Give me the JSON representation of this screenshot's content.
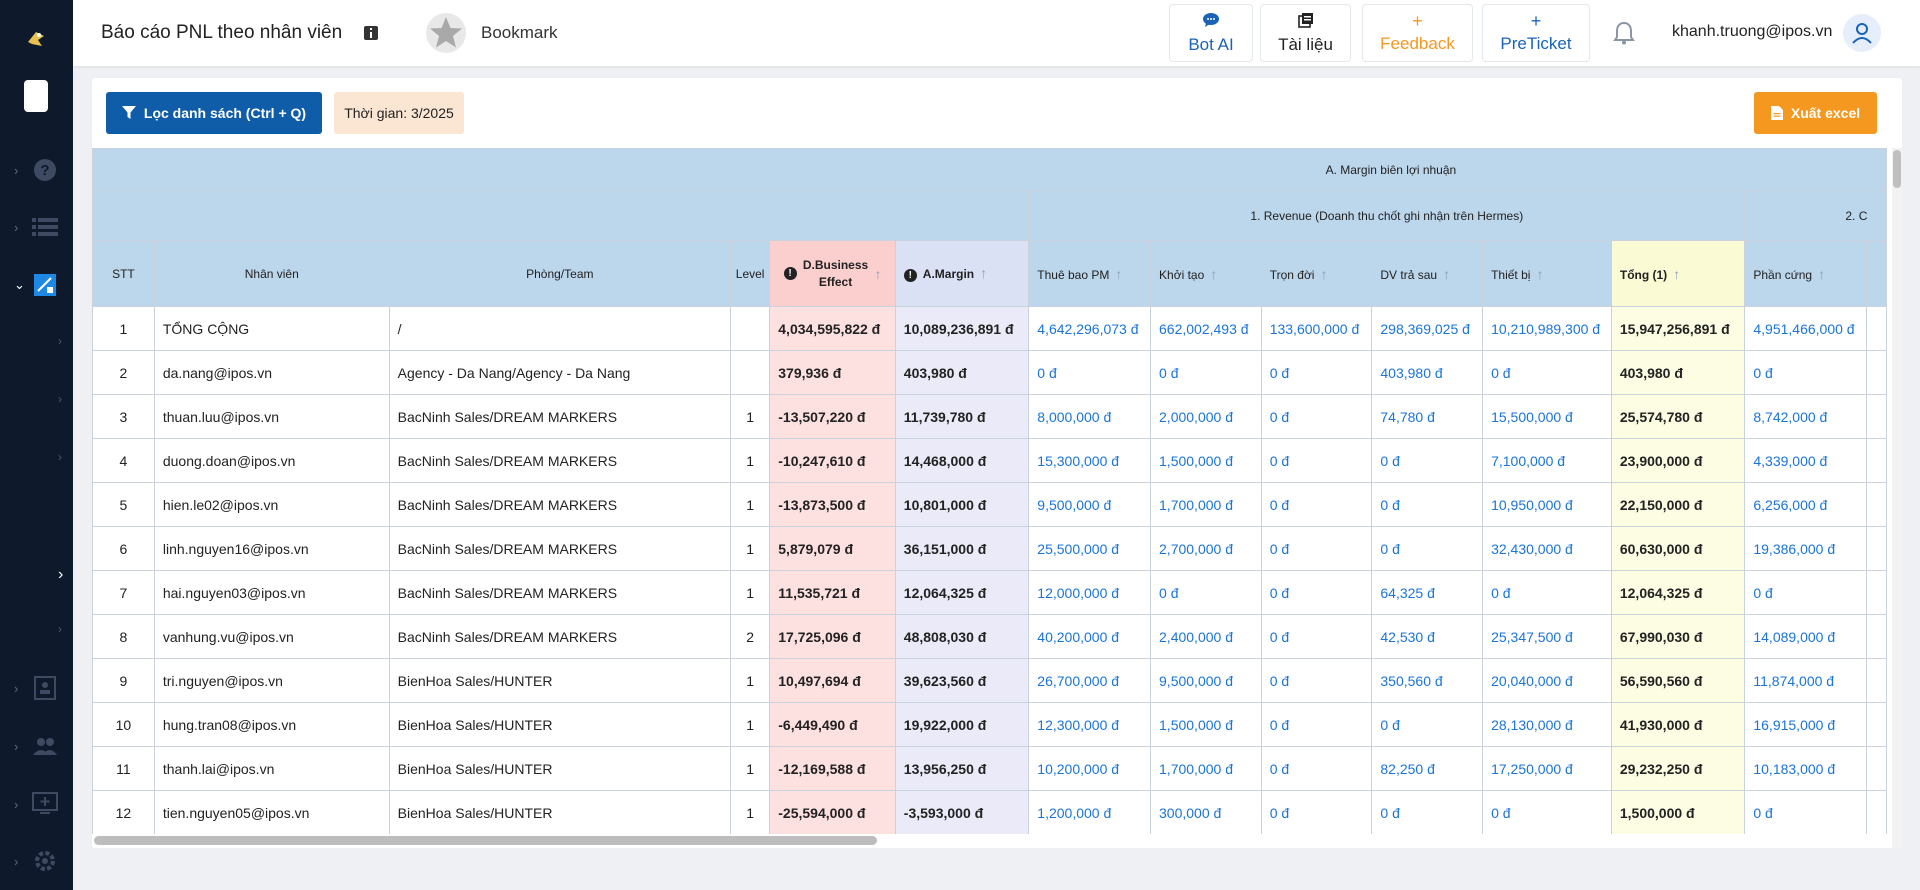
{
  "header": {
    "title": "Báo cáo PNL theo nhân viên",
    "bookmark_label": "Bookmark",
    "buttons": [
      {
        "label": "Bot AI",
        "icon": "chat-icon",
        "color": "#1a63b7"
      },
      {
        "label": "Tài liệu",
        "icon": "document-icon",
        "color": "#222222"
      },
      {
        "label": "Feedback",
        "icon": "plus-icon",
        "color": "#f5981f"
      },
      {
        "label": "PreTicket",
        "icon": "plus-icon",
        "color": "#1a63b7"
      }
    ],
    "user_email": "khanh.truong@ipos.vn"
  },
  "toolbar": {
    "filter_label": "Lọc danh sách (Ctrl + Q)",
    "time_label": "Thời gian: 3/2025",
    "export_label": "Xuất excel"
  },
  "table": {
    "group_header_a": "A. Margin biên lợi nhuận",
    "group_header_revenue": "1. Revenue (Doanh thu chốt ghi nhận trên Hermes)",
    "group_header_c": "2. C",
    "columns": {
      "stt": "STT",
      "nhan_vien": "Nhân viên",
      "phong_team": "Phòng/Team",
      "level": "Level",
      "business_effect": "D.Business Effect",
      "margin": "A.Margin",
      "thue_bao": "Thuê bao PM",
      "khoi_tao": "Khởi tạo",
      "tron_doi": "Trọn đời",
      "dv_tra_sau": "DV trả sau",
      "thiet_bi": "Thiết bị",
      "tong": "Tổng (1)",
      "phan_cung": "Phần cứng"
    },
    "rows": [
      {
        "stt": "1",
        "name": "TỔNG CỘNG",
        "team": "/",
        "level": "",
        "be": "4,034,595,822 đ",
        "margin": "10,089,236,891 đ",
        "thue_bao": "4,642,296,073 đ",
        "khoi_tao": "662,002,493 đ",
        "tron_doi": "133,600,000 đ",
        "dv": "298,369,025 đ",
        "thiet_bi": "10,210,989,300 đ",
        "tong": "15,947,256,891 đ",
        "phan_cung": "4,951,466,000 đ"
      },
      {
        "stt": "2",
        "name": "da.nang@ipos.vn",
        "team": "Agency - Da Nang/Agency - Da Nang",
        "level": "",
        "be": "379,936 đ",
        "margin": "403,980 đ",
        "thue_bao": "0 đ",
        "khoi_tao": "0 đ",
        "tron_doi": "0 đ",
        "dv": "403,980 đ",
        "thiet_bi": "0 đ",
        "tong": "403,980 đ",
        "phan_cung": "0 đ"
      },
      {
        "stt": "3",
        "name": "thuan.luu@ipos.vn",
        "team": "BacNinh Sales/DREAM MARKERS",
        "level": "1",
        "be": "-13,507,220 đ",
        "margin": "11,739,780 đ",
        "thue_bao": "8,000,000 đ",
        "khoi_tao": "2,000,000 đ",
        "tron_doi": "0 đ",
        "dv": "74,780 đ",
        "thiet_bi": "15,500,000 đ",
        "tong": "25,574,780 đ",
        "phan_cung": "8,742,000 đ"
      },
      {
        "stt": "4",
        "name": "duong.doan@ipos.vn",
        "team": "BacNinh Sales/DREAM MARKERS",
        "level": "1",
        "be": "-10,247,610 đ",
        "margin": "14,468,000 đ",
        "thue_bao": "15,300,000 đ",
        "khoi_tao": "1,500,000 đ",
        "tron_doi": "0 đ",
        "dv": "0 đ",
        "thiet_bi": "7,100,000 đ",
        "tong": "23,900,000 đ",
        "phan_cung": "4,339,000 đ"
      },
      {
        "stt": "5",
        "name": "hien.le02@ipos.vn",
        "team": "BacNinh Sales/DREAM MARKERS",
        "level": "1",
        "be": "-13,873,500 đ",
        "margin": "10,801,000 đ",
        "thue_bao": "9,500,000 đ",
        "khoi_tao": "1,700,000 đ",
        "tron_doi": "0 đ",
        "dv": "0 đ",
        "thiet_bi": "10,950,000 đ",
        "tong": "22,150,000 đ",
        "phan_cung": "6,256,000 đ"
      },
      {
        "stt": "6",
        "name": "linh.nguyen16@ipos.vn",
        "team": "BacNinh Sales/DREAM MARKERS",
        "level": "1",
        "be": "5,879,079 đ",
        "margin": "36,151,000 đ",
        "thue_bao": "25,500,000 đ",
        "khoi_tao": "2,700,000 đ",
        "tron_doi": "0 đ",
        "dv": "0 đ",
        "thiet_bi": "32,430,000 đ",
        "tong": "60,630,000 đ",
        "phan_cung": "19,386,000 đ"
      },
      {
        "stt": "7",
        "name": "hai.nguyen03@ipos.vn",
        "team": "BacNinh Sales/DREAM MARKERS",
        "level": "1",
        "be": "11,535,721 đ",
        "margin": "12,064,325 đ",
        "thue_bao": "12,000,000 đ",
        "khoi_tao": "0 đ",
        "tron_doi": "0 đ",
        "dv": "64,325 đ",
        "thiet_bi": "0 đ",
        "tong": "12,064,325 đ",
        "phan_cung": "0 đ"
      },
      {
        "stt": "8",
        "name": "vanhung.vu@ipos.vn",
        "team": "BacNinh Sales/DREAM MARKERS",
        "level": "2",
        "be": "17,725,096 đ",
        "margin": "48,808,030 đ",
        "thue_bao": "40,200,000 đ",
        "khoi_tao": "2,400,000 đ",
        "tron_doi": "0 đ",
        "dv": "42,530 đ",
        "thiet_bi": "25,347,500 đ",
        "tong": "67,990,030 đ",
        "phan_cung": "14,089,000 đ"
      },
      {
        "stt": "9",
        "name": "tri.nguyen@ipos.vn",
        "team": "BienHoa Sales/HUNTER",
        "level": "1",
        "be": "10,497,694 đ",
        "margin": "39,623,560 đ",
        "thue_bao": "26,700,000 đ",
        "khoi_tao": "9,500,000 đ",
        "tron_doi": "0 đ",
        "dv": "350,560 đ",
        "thiet_bi": "20,040,000 đ",
        "tong": "56,590,560 đ",
        "phan_cung": "11,874,000 đ"
      },
      {
        "stt": "10",
        "name": "hung.tran08@ipos.vn",
        "team": "BienHoa Sales/HUNTER",
        "level": "1",
        "be": "-6,449,490 đ",
        "margin": "19,922,000 đ",
        "thue_bao": "12,300,000 đ",
        "khoi_tao": "1,500,000 đ",
        "tron_doi": "0 đ",
        "dv": "0 đ",
        "thiet_bi": "28,130,000 đ",
        "tong": "41,930,000 đ",
        "phan_cung": "16,915,000 đ"
      },
      {
        "stt": "11",
        "name": "thanh.lai@ipos.vn",
        "team": "BienHoa Sales/HUNTER",
        "level": "1",
        "be": "-12,169,588 đ",
        "margin": "13,956,250 đ",
        "thue_bao": "10,200,000 đ",
        "khoi_tao": "1,700,000 đ",
        "tron_doi": "0 đ",
        "dv": "82,250 đ",
        "thiet_bi": "17,250,000 đ",
        "tong": "29,232,250 đ",
        "phan_cung": "10,183,000 đ"
      },
      {
        "stt": "12",
        "name": "tien.nguyen05@ipos.vn",
        "team": "BienHoa Sales/HUNTER",
        "level": "1",
        "be": "-25,594,000 đ",
        "margin": "-3,593,000 đ",
        "thue_bao": "1,200,000 đ",
        "khoi_tao": "300,000 đ",
        "tron_doi": "0 đ",
        "dv": "0 đ",
        "thiet_bi": "0 đ",
        "tong": "1,500,000 đ",
        "phan_cung": "0 đ"
      }
    ]
  },
  "sidebar": {
    "items": [
      {
        "icon": "help-icon"
      },
      {
        "icon": "list-icon"
      },
      {
        "icon": "report-icon",
        "active": true
      },
      {
        "icon": "contacts-icon"
      },
      {
        "icon": "users-icon"
      },
      {
        "icon": "monitor-icon"
      },
      {
        "icon": "settings-icon"
      }
    ]
  },
  "colors": {
    "primary": "#0f5ca8",
    "accent_orange": "#f5981f",
    "sidebar_bg": "#0e1a2b",
    "header_blue": "#bcd6ec",
    "link_blue": "#1a74d9"
  }
}
